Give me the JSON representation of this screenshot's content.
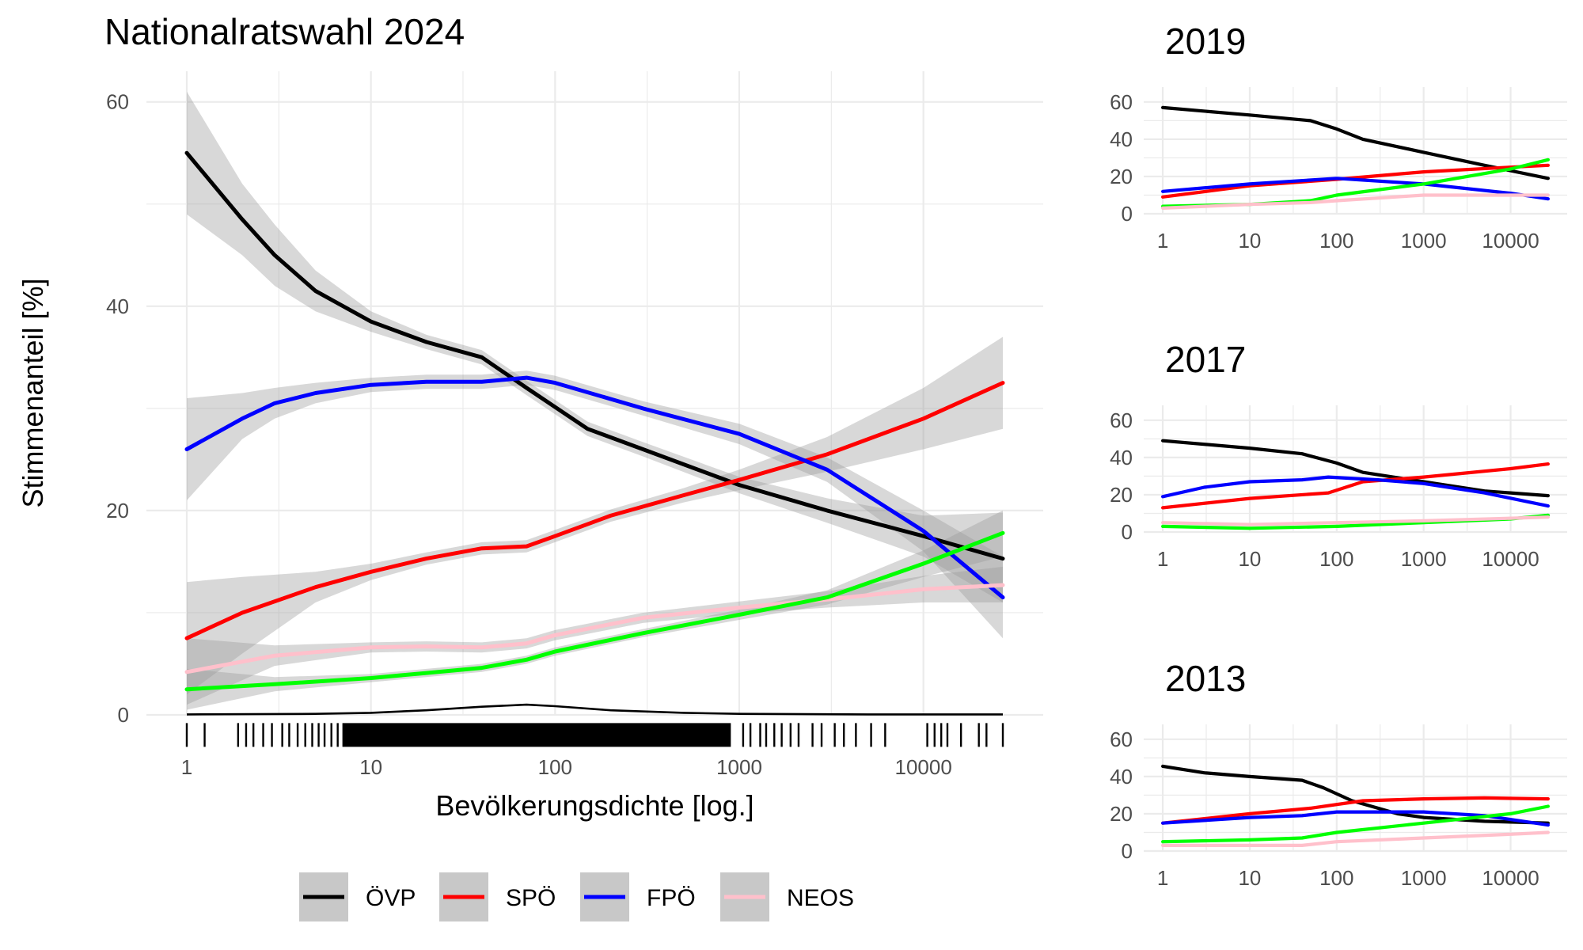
{
  "chart_data": [
    {
      "type": "line",
      "title": "Nationalratswahl 2024",
      "xlabel": "Bevölkerungsdichte [log.]",
      "ylabel": "Stimmenanteil [%]",
      "x_scale": "log10",
      "xlim": [
        1,
        27000
      ],
      "ylim": [
        0,
        63
      ],
      "x_ticks": [
        1,
        10,
        100,
        1000,
        10000
      ],
      "x_tick_labels": [
        "1",
        "10",
        "100",
        "1000",
        "10000"
      ],
      "y_ticks": [
        0,
        20,
        40,
        60
      ],
      "y_tick_labels": [
        "0",
        "20",
        "40",
        "60"
      ],
      "grid": true,
      "confidence_band": true,
      "rug": true,
      "series": [
        {
          "name": "ÖVP",
          "color": "#000000",
          "x": [
            1,
            2,
            3,
            5,
            10,
            20,
            40,
            70,
            150,
            300,
            1000,
            3000,
            10000,
            27000
          ],
          "y": [
            55,
            48.5,
            45,
            41.5,
            38.5,
            36.5,
            35,
            32,
            28,
            26,
            22.5,
            20,
            17.5,
            15.3
          ],
          "ci": [
            [
              49,
              61
            ],
            [
              45,
              52
            ],
            [
              42,
              48
            ],
            [
              39.5,
              43.5
            ],
            [
              37.5,
              39.5
            ],
            [
              35.8,
              37.2
            ],
            [
              34.3,
              35.7
            ],
            [
              31.3,
              32.7
            ],
            [
              27.3,
              28.7
            ],
            [
              25.3,
              26.7
            ],
            [
              21.7,
              23.3
            ],
            [
              18.8,
              21.2
            ],
            [
              15.5,
              19.5
            ],
            [
              11,
              19.8
            ]
          ]
        },
        {
          "name": "SPÖ",
          "color": "#ff0000",
          "x": [
            1,
            2,
            5,
            10,
            20,
            40,
            70,
            100,
            200,
            500,
            1000,
            3000,
            10000,
            27000
          ],
          "y": [
            7.5,
            10,
            12.5,
            14,
            15.3,
            16.3,
            16.5,
            17.5,
            19.5,
            21.5,
            23,
            25.5,
            29,
            32.5
          ],
          "ci": [
            [
              2,
              13
            ],
            [
              6,
              13.5
            ],
            [
              11,
              14
            ],
            [
              13.2,
              14.8
            ],
            [
              14.7,
              15.9
            ],
            [
              15.7,
              16.9
            ],
            [
              15.9,
              17.1
            ],
            [
              16.9,
              18.1
            ],
            [
              18.9,
              20.1
            ],
            [
              20.8,
              22.2
            ],
            [
              22,
              24
            ],
            [
              23.8,
              27.2
            ],
            [
              26,
              32
            ],
            [
              28,
              37
            ]
          ]
        },
        {
          "name": "FPÖ",
          "color": "#0000ff",
          "x": [
            1,
            2,
            3,
            5,
            10,
            20,
            40,
            70,
            100,
            300,
            1000,
            3000,
            10000,
            27000
          ],
          "y": [
            26,
            29,
            30.5,
            31.5,
            32.3,
            32.6,
            32.6,
            33,
            32.5,
            30,
            27.5,
            24,
            18,
            11.5
          ],
          "ci": [
            [
              21,
              31
            ],
            [
              27,
              31.5
            ],
            [
              29,
              32
            ],
            [
              30.5,
              32.5
            ],
            [
              31.6,
              33
            ],
            [
              31.9,
              33.3
            ],
            [
              31.9,
              33.3
            ],
            [
              32.3,
              33.7
            ],
            [
              31.8,
              33.2
            ],
            [
              29.3,
              30.7
            ],
            [
              26.5,
              28.5
            ],
            [
              22.8,
              25.2
            ],
            [
              16,
              20
            ],
            [
              7.5,
              15.5
            ]
          ]
        },
        {
          "name": "NEOS",
          "color": "#ffc0cb",
          "x": [
            1,
            3,
            10,
            20,
            40,
            70,
            100,
            300,
            1000,
            3000,
            10000,
            27000
          ],
          "y": [
            4.2,
            5.8,
            6.6,
            6.7,
            6.6,
            7,
            7.8,
            9.5,
            10.5,
            11.3,
            12.3,
            12.7
          ],
          "ci": [
            [
              1,
              7.5
            ],
            [
              4.8,
              6.8
            ],
            [
              6.1,
              7.1
            ],
            [
              6.2,
              7.2
            ],
            [
              6.1,
              7.1
            ],
            [
              6.5,
              7.5
            ],
            [
              7.3,
              8.3
            ],
            [
              9,
              10
            ],
            [
              9.9,
              11.1
            ],
            [
              10.5,
              12.1
            ],
            [
              11,
              13.6
            ],
            [
              11,
              14.5
            ]
          ]
        },
        {
          "color": "#00ff00",
          "x": [
            1,
            3,
            10,
            20,
            40,
            70,
            100,
            300,
            1000,
            3000,
            10000,
            27000
          ],
          "y": [
            2.5,
            3,
            3.6,
            4.1,
            4.6,
            5.4,
            6.2,
            8,
            9.8,
            11.5,
            14.8,
            17.8
          ],
          "ci": [
            [
              0.5,
              4.5
            ],
            [
              2.3,
              3.7
            ],
            [
              3.2,
              4
            ],
            [
              3.7,
              4.5
            ],
            [
              4.2,
              5
            ],
            [
              5,
              5.8
            ],
            [
              5.8,
              6.6
            ],
            [
              7.6,
              8.4
            ],
            [
              9.3,
              10.3
            ],
            [
              10.8,
              12.2
            ],
            [
              13.5,
              16.1
            ],
            [
              15.5,
              20
            ]
          ]
        }
      ],
      "density_curve": {
        "color": "#000000",
        "x": [
          1,
          5,
          10,
          20,
          40,
          70,
          100,
          200,
          500,
          1000,
          5000,
          27000
        ],
        "y": [
          0.05,
          0.1,
          0.2,
          0.45,
          0.8,
          1.0,
          0.85,
          0.45,
          0.2,
          0.1,
          0.05,
          0.05
        ]
      },
      "legend": {
        "position": "bottom",
        "entries": [
          "ÖVP",
          "SPÖ",
          "FPÖ",
          "NEOS"
        ]
      }
    },
    {
      "type": "line",
      "title": "2019",
      "x_scale": "log10",
      "xlim": [
        1,
        27000
      ],
      "ylim": [
        0,
        68
      ],
      "x_ticks": [
        1,
        10,
        100,
        1000,
        10000
      ],
      "x_tick_labels": [
        "1",
        "10",
        "100",
        "1000",
        "10000"
      ],
      "y_ticks": [
        0,
        20,
        40,
        60
      ],
      "y_tick_labels": [
        "0",
        "20",
        "40",
        "60"
      ],
      "grid": true,
      "series": [
        {
          "color": "#000000",
          "x": [
            1,
            10,
            50,
            100,
            200,
            1000,
            5000,
            27000
          ],
          "y": [
            57,
            53,
            50,
            45.5,
            40,
            33,
            26,
            19
          ]
        },
        {
          "color": "#ff0000",
          "x": [
            1,
            10,
            100,
            1000,
            10000,
            27000
          ],
          "y": [
            9,
            15,
            18.5,
            22.5,
            25,
            26
          ]
        },
        {
          "color": "#0000ff",
          "x": [
            1,
            10,
            100,
            1000,
            10000,
            27000
          ],
          "y": [
            12,
            16,
            19,
            16,
            11,
            8
          ]
        },
        {
          "color": "#00ff00",
          "x": [
            1,
            10,
            50,
            100,
            1000,
            10000,
            27000
          ],
          "y": [
            4,
            5,
            7,
            10,
            16,
            24,
            29
          ]
        },
        {
          "color": "#ffc0cb",
          "x": [
            1,
            10,
            50,
            100,
            1000,
            27000
          ],
          "y": [
            3,
            5,
            6,
            7,
            10,
            10
          ]
        }
      ]
    },
    {
      "type": "line",
      "title": "2017",
      "x_scale": "log10",
      "xlim": [
        1,
        27000
      ],
      "ylim": [
        0,
        68
      ],
      "x_ticks": [
        1,
        10,
        100,
        1000,
        10000
      ],
      "x_tick_labels": [
        "1",
        "10",
        "100",
        "1000",
        "10000"
      ],
      "y_ticks": [
        0,
        20,
        40,
        60
      ],
      "y_tick_labels": [
        "0",
        "20",
        "40",
        "60"
      ],
      "grid": true,
      "series": [
        {
          "color": "#000000",
          "x": [
            1,
            10,
            40,
            100,
            200,
            1000,
            5000,
            27000
          ],
          "y": [
            49,
            45,
            42,
            37,
            32,
            27,
            22,
            19.5
          ]
        },
        {
          "color": "#ff0000",
          "x": [
            1,
            10,
            80,
            200,
            1000,
            10000,
            27000
          ],
          "y": [
            13,
            18,
            21,
            27,
            29.5,
            34,
            36.5
          ]
        },
        {
          "color": "#0000ff",
          "x": [
            1,
            3,
            10,
            40,
            80,
            300,
            1000,
            5000,
            27000
          ],
          "y": [
            19,
            24,
            27,
            28,
            29.5,
            28,
            26,
            21,
            14
          ]
        },
        {
          "color": "#00ff00",
          "x": [
            1,
            10,
            100,
            1000,
            10000,
            27000
          ],
          "y": [
            3,
            2,
            3,
            5,
            7,
            9
          ]
        },
        {
          "color": "#ffc0cb",
          "x": [
            1,
            10,
            100,
            1000,
            27000
          ],
          "y": [
            5,
            4,
            5,
            6,
            8
          ]
        }
      ]
    },
    {
      "type": "line",
      "title": "2013",
      "x_scale": "log10",
      "xlim": [
        1,
        27000
      ],
      "ylim": [
        0,
        68
      ],
      "x_ticks": [
        1,
        10,
        100,
        1000,
        10000
      ],
      "x_tick_labels": [
        "1",
        "10",
        "100",
        "1000",
        "10000"
      ],
      "y_ticks": [
        0,
        20,
        40,
        60
      ],
      "y_tick_labels": [
        "0",
        "20",
        "40",
        "60"
      ],
      "grid": true,
      "series": [
        {
          "color": "#000000",
          "x": [
            1,
            3,
            10,
            40,
            70,
            150,
            500,
            1000,
            5000,
            27000
          ],
          "y": [
            45.5,
            42,
            40,
            38,
            34,
            27,
            20,
            18,
            16,
            15
          ]
        },
        {
          "color": "#ff0000",
          "x": [
            1,
            10,
            50,
            200,
            1000,
            5000,
            27000
          ],
          "y": [
            15,
            20,
            23,
            27,
            28,
            28.5,
            28
          ]
        },
        {
          "color": "#0000ff",
          "x": [
            1,
            10,
            40,
            100,
            1000,
            5000,
            27000
          ],
          "y": [
            15,
            18,
            19,
            21,
            21,
            19,
            14
          ]
        },
        {
          "color": "#00ff00",
          "x": [
            1,
            10,
            40,
            100,
            1000,
            10000,
            27000
          ],
          "y": [
            5,
            6,
            7,
            10,
            15,
            20,
            24
          ]
        },
        {
          "color": "#ffc0cb",
          "x": [
            1,
            10,
            40,
            100,
            1000,
            10000,
            27000
          ],
          "y": [
            3,
            3,
            3,
            5,
            7,
            9,
            10
          ]
        }
      ]
    }
  ]
}
